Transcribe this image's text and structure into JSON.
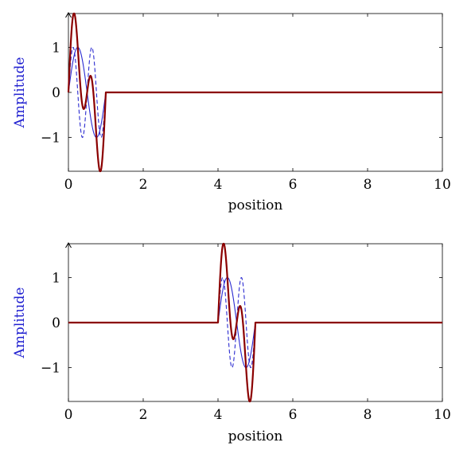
{
  "chart_data": [
    {
      "type": "line",
      "xlabel": "position",
      "ylabel": "Amplitude",
      "xlim": [
        0,
        10
      ],
      "ylim": [
        -1.75,
        1.75
      ],
      "xticks": [
        "0",
        "2",
        "4",
        "6",
        "8",
        "10"
      ],
      "yticks": [
        "1",
        "0",
        "−1"
      ],
      "ylabel_color": "#2020d0",
      "pulse": {
        "start": 0,
        "end": 1
      },
      "series": [
        {
          "color": "#2a2ad0",
          "style": "solid",
          "width": 1.1,
          "freq": 1,
          "amp": 1
        },
        {
          "color": "#2a2ad0",
          "style": "dashed",
          "width": 1.1,
          "freq": 2,
          "amp": 1
        },
        {
          "color": "#8b0000",
          "style": "solid",
          "width": 2.2,
          "sum_of": [
            1,
            2
          ],
          "amp": 1.76
        }
      ]
    },
    {
      "type": "line",
      "xlabel": "position",
      "ylabel": "Amplitude",
      "xlim": [
        0,
        10
      ],
      "ylim": [
        -1.75,
        1.75
      ],
      "xticks": [
        "0",
        "2",
        "4",
        "6",
        "8",
        "10"
      ],
      "yticks": [
        "1",
        "0",
        "−1"
      ],
      "ylabel_color": "#2020d0",
      "pulse": {
        "start": 4,
        "end": 5
      },
      "series": [
        {
          "color": "#2a2ad0",
          "style": "solid",
          "width": 1.1,
          "freq": 1,
          "amp": 1
        },
        {
          "color": "#2a2ad0",
          "style": "dashed",
          "width": 1.1,
          "freq": 2,
          "amp": 1
        },
        {
          "color": "#8b0000",
          "style": "solid",
          "width": 2.2,
          "sum_of": [
            1,
            2
          ],
          "amp": 1.76
        }
      ]
    }
  ]
}
